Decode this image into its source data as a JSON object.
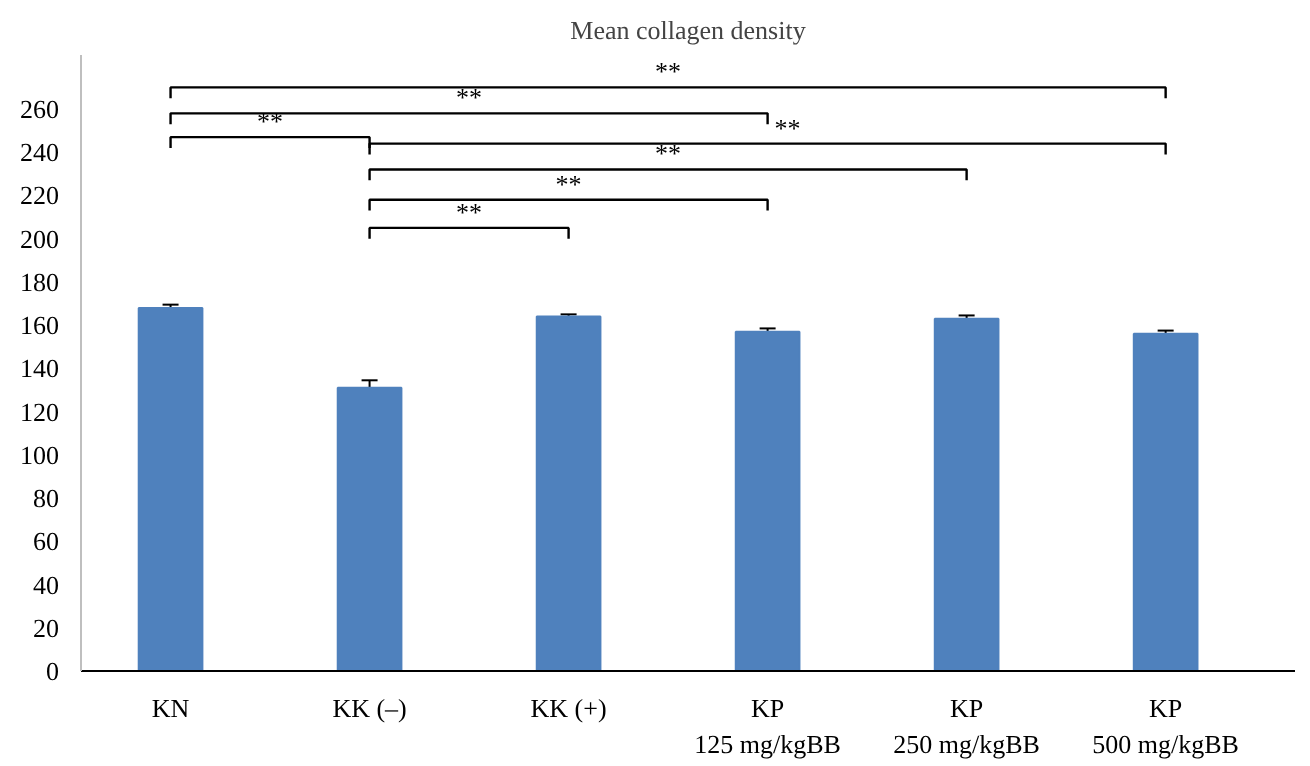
{
  "chart_data": {
    "type": "bar",
    "title": "Mean collagen density",
    "categories": [
      "KN",
      "KK (–)",
      "KK (+)",
      "KP\n125 mg/kgBB",
      "KP\n250 mg/kgBB",
      "KP\n500 mg/kgBB"
    ],
    "values": [
      168,
      131,
      164,
      157,
      163,
      156
    ],
    "errors": [
      1.5,
      3.5,
      1,
      1.5,
      1.5,
      1.5
    ],
    "color": "#4f81bd",
    "yticks": [
      0,
      20,
      40,
      60,
      80,
      100,
      120,
      140,
      160,
      180,
      200,
      220,
      240,
      260
    ],
    "ylim": [
      0,
      285
    ],
    "grid": false,
    "annotations": [
      "**",
      "**",
      "**",
      "**",
      "**",
      "**",
      "**"
    ]
  }
}
